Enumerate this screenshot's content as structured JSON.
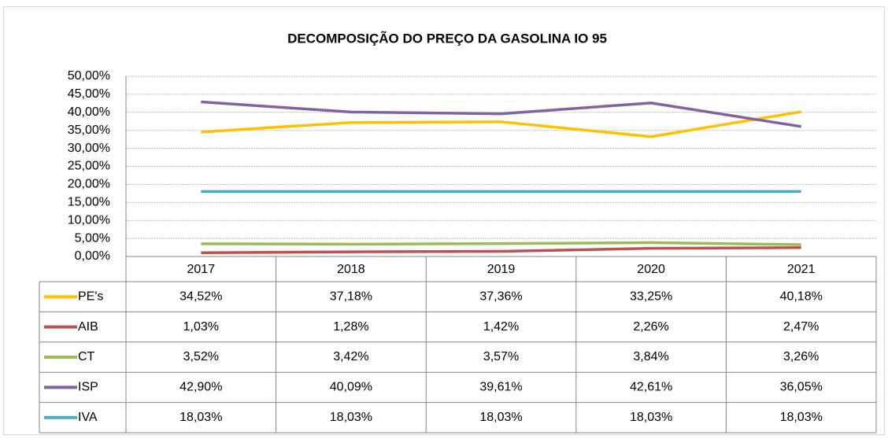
{
  "chart_data": {
    "type": "line",
    "title": "DECOMPOSIÇÃO  DO PREÇO DA GASOLINA IO 95",
    "categories": [
      "2017",
      "2018",
      "2019",
      "2020",
      "2021"
    ],
    "series": [
      {
        "name": "PE's",
        "color": "#ffc000",
        "values": [
          34.52,
          37.18,
          37.36,
          33.25,
          40.18
        ],
        "value_labels": [
          "34,52%",
          "37,18%",
          "37,36%",
          "33,25%",
          "40,18%"
        ]
      },
      {
        "name": "AIB",
        "color": "#c0504d",
        "values": [
          1.03,
          1.28,
          1.42,
          2.26,
          2.47
        ],
        "value_labels": [
          "1,03%",
          "1,28%",
          "1,42%",
          "2,26%",
          "2,47%"
        ]
      },
      {
        "name": "CT",
        "color": "#9bbb59",
        "values": [
          3.52,
          3.42,
          3.57,
          3.84,
          3.26
        ],
        "value_labels": [
          "3,52%",
          "3,42%",
          "3,57%",
          "3,84%",
          "3,26%"
        ]
      },
      {
        "name": "ISP",
        "color": "#8064a2",
        "values": [
          42.9,
          40.09,
          39.61,
          42.61,
          36.05
        ],
        "value_labels": [
          "42,90%",
          "40,09%",
          "39,61%",
          "42,61%",
          "36,05%"
        ]
      },
      {
        "name": "IVA",
        "color": "#4bacc6",
        "values": [
          18.03,
          18.03,
          18.03,
          18.03,
          18.03
        ],
        "value_labels": [
          "18,03%",
          "18,03%",
          "18,03%",
          "18,03%",
          "18,03%"
        ]
      }
    ],
    "ylim": [
      0,
      50
    ],
    "yticks": [
      {
        "value": 0,
        "label": "0,00%"
      },
      {
        "value": 5,
        "label": "5,00%"
      },
      {
        "value": 10,
        "label": "10,00%"
      },
      {
        "value": 15,
        "label": "15,00%"
      },
      {
        "value": 20,
        "label": "20,00%"
      },
      {
        "value": 25,
        "label": "25,00%"
      },
      {
        "value": 30,
        "label": "30,00%"
      },
      {
        "value": 35,
        "label": "35,00%"
      },
      {
        "value": 40,
        "label": "40,00%"
      },
      {
        "value": 45,
        "label": "45,00%"
      },
      {
        "value": 50,
        "label": "50,00%"
      }
    ],
    "grid": true
  }
}
